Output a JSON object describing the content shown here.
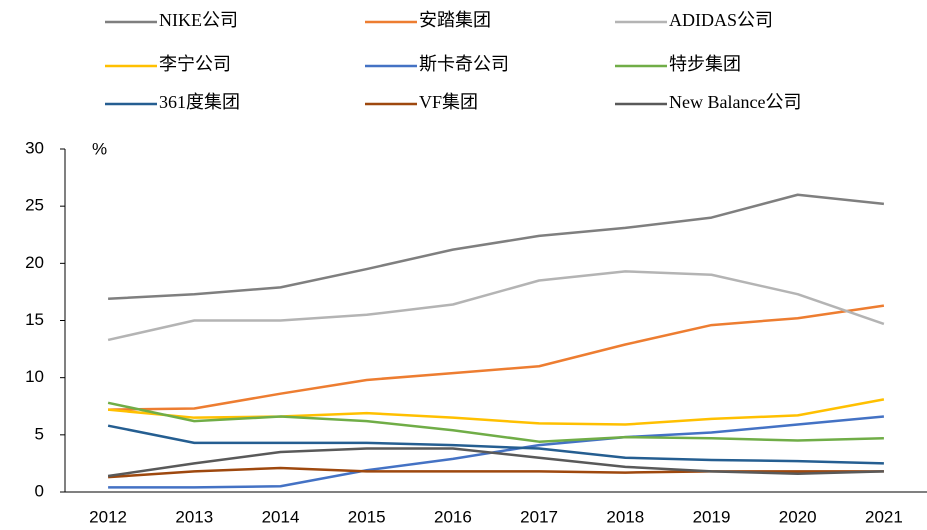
{
  "chart_data": {
    "type": "line",
    "y_unit_label": "%",
    "categories": [
      "2012",
      "2013",
      "2014",
      "2015",
      "2016",
      "2017",
      "2018",
      "2019",
      "2020",
      "2021"
    ],
    "ylim": [
      0,
      30
    ],
    "yticks": [
      0,
      5,
      10,
      15,
      20,
      25,
      30
    ],
    "grid": false,
    "series": [
      {
        "name": "NIKE公司",
        "color": "#7f7f7f",
        "values": [
          16.9,
          17.3,
          17.9,
          19.5,
          21.2,
          22.4,
          23.1,
          24.0,
          26.0,
          25.2
        ]
      },
      {
        "name": "安踏集团",
        "color": "#ed7d31",
        "values": [
          7.2,
          7.3,
          8.6,
          9.8,
          10.4,
          11.0,
          12.9,
          14.6,
          15.2,
          16.3
        ]
      },
      {
        "name": "ADIDAS公司",
        "color": "#b4b4b4",
        "values": [
          13.3,
          15.0,
          15.0,
          15.5,
          16.4,
          18.5,
          19.3,
          19.0,
          17.3,
          14.7
        ]
      },
      {
        "name": "李宁公司",
        "color": "#ffc000",
        "values": [
          7.2,
          6.5,
          6.6,
          6.9,
          6.5,
          6.0,
          5.9,
          6.4,
          6.7,
          8.1
        ]
      },
      {
        "name": "斯卡奇公司",
        "color": "#4472c4",
        "values": [
          0.4,
          0.4,
          0.5,
          1.9,
          2.9,
          4.1,
          4.8,
          5.2,
          5.9,
          6.6
        ]
      },
      {
        "name": "特步集团",
        "color": "#70ad47",
        "values": [
          7.8,
          6.2,
          6.6,
          6.2,
          5.4,
          4.4,
          4.8,
          4.7,
          4.5,
          4.7
        ]
      },
      {
        "name": "361度集团",
        "color": "#255e91",
        "values": [
          5.8,
          4.3,
          4.3,
          4.3,
          4.1,
          3.8,
          3.0,
          2.8,
          2.7,
          2.5
        ]
      },
      {
        "name": "VF集团",
        "color": "#9e480e",
        "values": [
          1.3,
          1.8,
          2.1,
          1.8,
          1.8,
          1.8,
          1.7,
          1.8,
          1.8,
          1.8
        ]
      },
      {
        "name": "New Balance公司",
        "color": "#595959",
        "values": [
          1.4,
          2.5,
          3.5,
          3.8,
          3.8,
          3.0,
          2.2,
          1.8,
          1.6,
          1.8
        ]
      }
    ]
  }
}
